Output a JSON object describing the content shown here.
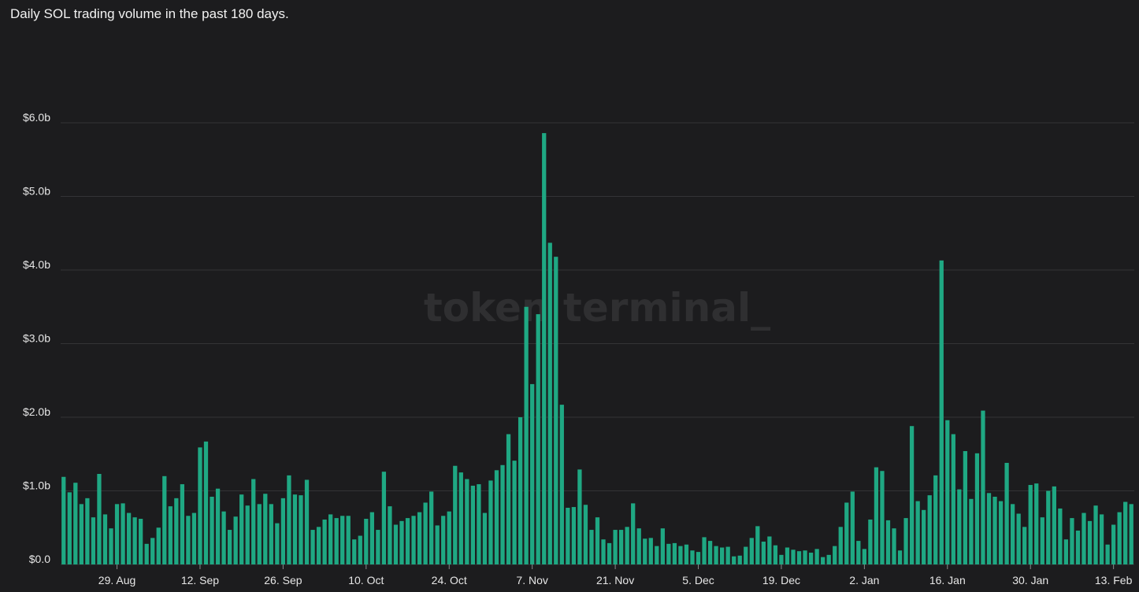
{
  "title": "Daily SOL trading volume in the past 180 days.",
  "watermark": "token terminal_",
  "colors": {
    "bar": "#1fa883",
    "background": "#1c1c1e",
    "grid": "#333336"
  },
  "chart_data": {
    "type": "bar",
    "title": "Daily SOL trading volume in the past 180 days.",
    "xlabel": "",
    "ylabel": "",
    "ylim": [
      0,
      6.0
    ],
    "y_unit": "billions USD",
    "y_ticks": [
      {
        "value": 0,
        "label": "$0.0"
      },
      {
        "value": 1,
        "label": "$1.0b"
      },
      {
        "value": 2,
        "label": "$2.0b"
      },
      {
        "value": 3,
        "label": "$3.0b"
      },
      {
        "value": 4,
        "label": "$4.0b"
      },
      {
        "value": 5,
        "label": "$5.0b"
      },
      {
        "value": 6,
        "label": "$6.0b"
      }
    ],
    "x_ticks": [
      {
        "index": 9,
        "label": "29. Aug"
      },
      {
        "index": 23,
        "label": "12. Sep"
      },
      {
        "index": 37,
        "label": "26. Sep"
      },
      {
        "index": 51,
        "label": "10. Oct"
      },
      {
        "index": 65,
        "label": "24. Oct"
      },
      {
        "index": 79,
        "label": "7. Nov"
      },
      {
        "index": 93,
        "label": "21. Nov"
      },
      {
        "index": 107,
        "label": "5. Dec"
      },
      {
        "index": 121,
        "label": "19. Dec"
      },
      {
        "index": 135,
        "label": "2. Jan"
      },
      {
        "index": 149,
        "label": "16. Jan"
      },
      {
        "index": 163,
        "label": "30. Jan"
      },
      {
        "index": 177,
        "label": "13. Feb"
      }
    ],
    "grid": true,
    "legend": "none",
    "values": [
      1.19,
      0.98,
      1.11,
      0.82,
      0.9,
      0.64,
      1.23,
      0.68,
      0.49,
      0.82,
      0.83,
      0.7,
      0.64,
      0.62,
      0.28,
      0.36,
      0.5,
      1.2,
      0.79,
      0.9,
      1.09,
      0.66,
      0.7,
      1.59,
      1.67,
      0.92,
      1.03,
      0.72,
      0.47,
      0.65,
      0.95,
      0.8,
      1.16,
      0.82,
      0.96,
      0.82,
      0.56,
      0.9,
      1.21,
      0.95,
      0.94,
      1.15,
      0.47,
      0.51,
      0.61,
      0.68,
      0.63,
      0.66,
      0.66,
      0.34,
      0.39,
      0.62,
      0.71,
      0.47,
      1.26,
      0.79,
      0.54,
      0.59,
      0.63,
      0.66,
      0.71,
      0.84,
      0.99,
      0.53,
      0.66,
      0.72,
      1.34,
      1.25,
      1.16,
      1.07,
      1.09,
      0.7,
      1.14,
      1.28,
      1.35,
      1.77,
      1.41,
      2.0,
      3.5,
      2.45,
      3.4,
      5.86,
      4.37,
      4.18,
      2.17,
      0.77,
      0.78,
      1.29,
      0.81,
      0.47,
      0.64,
      0.34,
      0.29,
      0.47,
      0.47,
      0.51,
      0.83,
      0.49,
      0.35,
      0.36,
      0.25,
      0.49,
      0.28,
      0.29,
      0.25,
      0.27,
      0.19,
      0.17,
      0.37,
      0.32,
      0.25,
      0.23,
      0.24,
      0.11,
      0.12,
      0.24,
      0.36,
      0.52,
      0.31,
      0.38,
      0.26,
      0.13,
      0.23,
      0.2,
      0.18,
      0.19,
      0.16,
      0.21,
      0.1,
      0.13,
      0.25,
      0.51,
      0.84,
      0.99,
      0.32,
      0.21,
      0.61,
      1.32,
      1.27,
      0.6,
      0.49,
      0.19,
      0.63,
      1.88,
      0.86,
      0.74,
      0.94,
      1.21,
      4.13,
      1.96,
      1.77,
      1.02,
      1.54,
      0.89,
      1.51,
      2.09,
      0.97,
      0.92,
      0.86,
      1.38,
      0.82,
      0.69,
      0.51,
      1.08,
      1.1,
      0.64,
      1.0,
      1.06,
      0.76,
      0.34,
      0.63,
      0.46,
      0.7,
      0.59,
      0.8,
      0.68,
      0.27,
      0.54,
      0.71,
      0.85,
      0.82
    ]
  }
}
